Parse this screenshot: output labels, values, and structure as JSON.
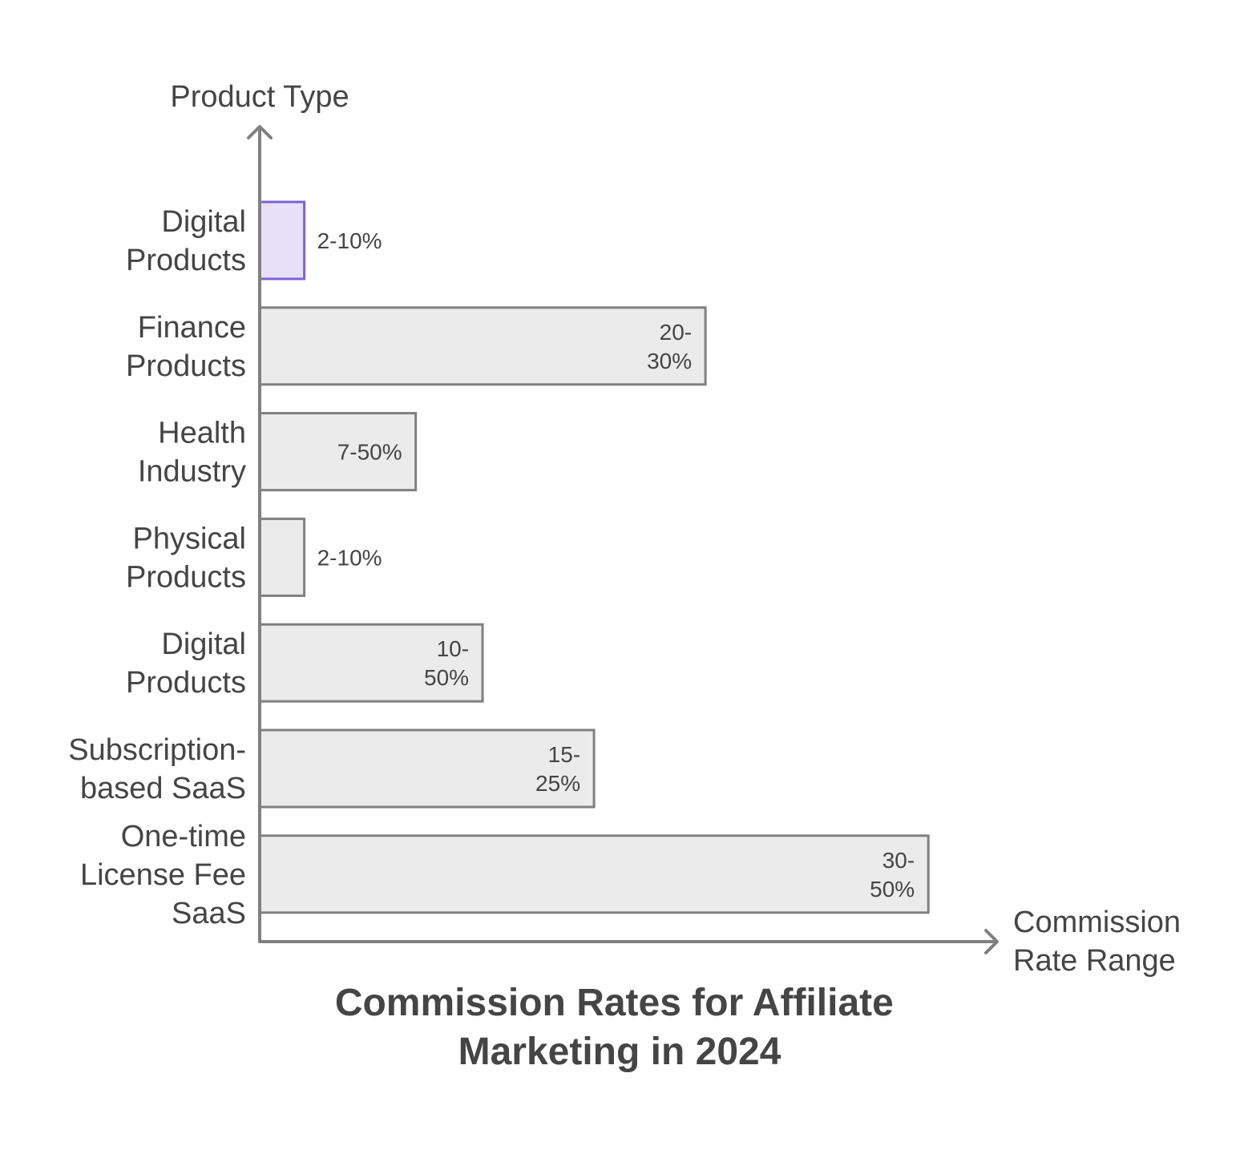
{
  "chart_data": {
    "type": "bar",
    "orientation": "horizontal",
    "title": "Commission Rates for Affiliate Marketing in 2024",
    "ylabel": "Product Type",
    "xlabel": "Commission Rate Range",
    "grid": false,
    "colors": {
      "bar_fill": "#ebebeb",
      "bar_stroke": "#808080",
      "highlight_fill": "#e6e0fa",
      "highlight_stroke": "#7b62d6",
      "text": "#454545",
      "axis": "#808080"
    },
    "categories": [
      "Digital Products",
      "Finance Products",
      "Health Industry",
      "Physical Products",
      "Digital Products",
      "Subscription-based SaaS",
      "One-time License Fee SaaS"
    ],
    "category_lines": [
      [
        "Digital",
        "Products"
      ],
      [
        "Finance",
        "Products"
      ],
      [
        "Health",
        "Industry"
      ],
      [
        "Physical",
        "Products"
      ],
      [
        "Digital",
        "Products"
      ],
      [
        "Subscription-",
        "based SaaS"
      ],
      [
        "One-time",
        "License Fee",
        "SaaS"
      ]
    ],
    "values": [
      2,
      20,
      7,
      2,
      10,
      15,
      30
    ],
    "range_labels": [
      "2-10%",
      "20-30%",
      "7-50%",
      "2-10%",
      "10-50%",
      "15-25%",
      "30-50%"
    ],
    "range_label_lines": [
      [
        "2-10%"
      ],
      [
        "20-",
        "30%"
      ],
      [
        "7-50%"
      ],
      [
        "2-10%"
      ],
      [
        "10-",
        "50%"
      ],
      [
        "15-",
        "25%"
      ],
      [
        "30-",
        "50%"
      ]
    ],
    "highlighted": [
      true,
      false,
      false,
      false,
      false,
      false,
      false
    ],
    "xlim": [
      0,
      31
    ]
  }
}
